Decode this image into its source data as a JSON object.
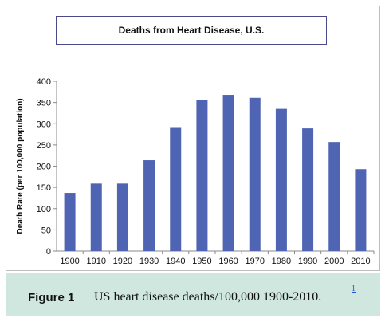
{
  "chart_data": {
    "type": "bar",
    "title": "Deaths from Heart Disease, U.S.",
    "xlabel": "",
    "ylabel": "Death Rate (per 100,000 population)",
    "categories": [
      "1900",
      "1910",
      "1920",
      "1930",
      "1940",
      "1950",
      "1960",
      "1970",
      "1980",
      "1990",
      "2000",
      "2010"
    ],
    "values": [
      137,
      159,
      159,
      214,
      292,
      356,
      368,
      361,
      335,
      289,
      257,
      193
    ],
    "ylim": [
      0,
      400
    ],
    "yticks": [
      "0",
      "50",
      "100",
      "150",
      "200",
      "250",
      "300",
      "350",
      "400"
    ],
    "grid": false,
    "legend": "none",
    "bar_color": "#4f65b4"
  },
  "caption": {
    "label": "Figure 1",
    "text": "US heart disease deaths/100,000 1900-2010.",
    "ref": "1"
  }
}
